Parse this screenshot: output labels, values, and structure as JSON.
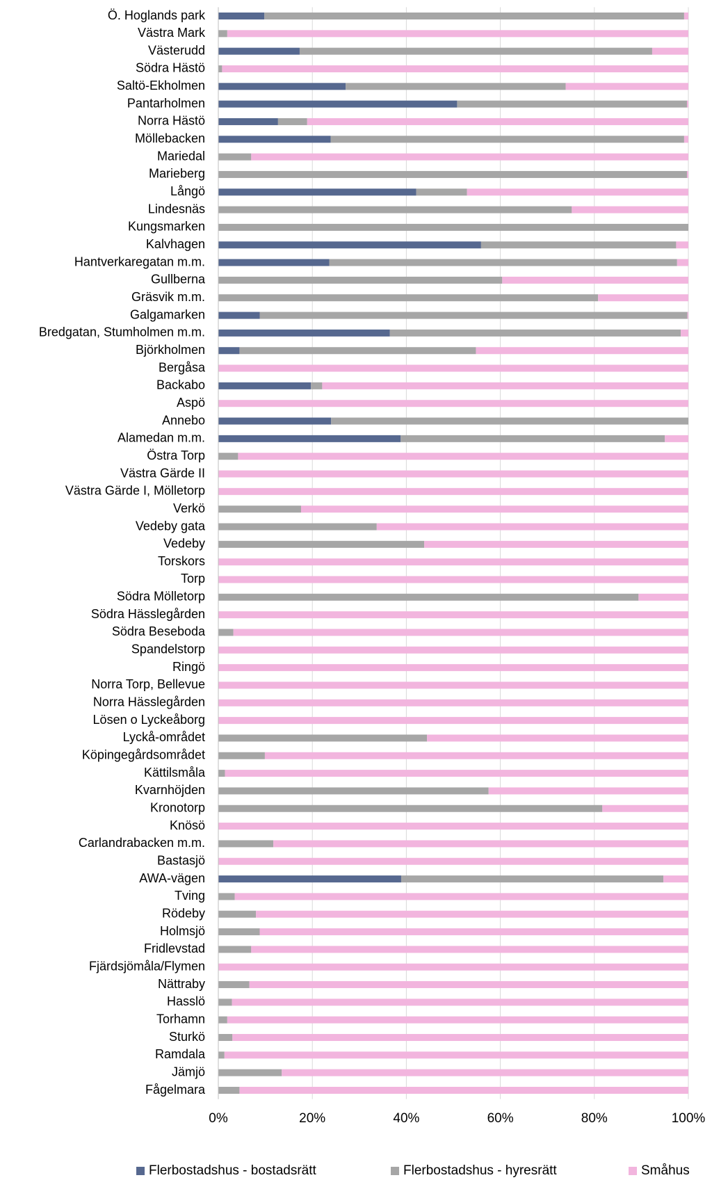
{
  "chart_data": {
    "type": "stacked_barh",
    "categories": [
      "Ö. Hoglands park",
      "Västra Mark",
      "Västerudd",
      "Södra Hästö",
      "Saltö-Ekholmen",
      "Pantarholmen",
      "Norra Hästö",
      "Möllebacken",
      "Mariedal",
      "Marieberg",
      "Långö",
      "Lindesnäs",
      "Kungsmarken",
      "Kalvhagen",
      "Hantverkaregatan m.m.",
      "Gullberna",
      "Gräsvik m.m.",
      "Galgamarken",
      "Bredgatan, Stumholmen m.m.",
      "Björkholmen",
      "Bergåsa",
      "Backabo",
      "Aspö",
      "Annebo",
      "Alamedan m.m.",
      "Östra Torp",
      "Västra Gärde II",
      "Västra Gärde I, Mölletorp",
      "Verkö",
      "Vedeby gata",
      "Vedeby",
      "Torskors",
      "Torp",
      "Södra Mölletorp",
      "Södra Hässlegården",
      "Södra Beseboda",
      "Spandelstorp",
      "Ringö",
      "Norra Torp, Bellevue",
      "Norra Hässlegården",
      "Lösen o Lyckeåborg",
      "Lyckå-området",
      "Köpingegårdsområdet",
      "Kättilsmåla",
      "Kvarnhöjden",
      "Kronotorp",
      "Knösö",
      "Carlandrabacken m.m.",
      "Bastasjö",
      "AWA-vägen",
      "Tving",
      "Rödeby",
      "Holmsjö",
      "Fridlevstad",
      "Fjärdsjömåla/Flymen",
      "Nättraby",
      "Hasslö",
      "Torhamn",
      "Sturkö",
      "Ramdala",
      "Jämjö",
      "Fågelmara"
    ],
    "series": [
      {
        "name": "Flerbostadshus - bostadsrätt",
        "color": "#56688f",
        "values": [
          9.8,
          0,
          17.3,
          0,
          27.1,
          50.8,
          12.7,
          23.9,
          0,
          0,
          42.1,
          0,
          0,
          55.9,
          23.6,
          0,
          0,
          8.8,
          36.5,
          4.5,
          0,
          19.7,
          0,
          24.0,
          38.8,
          0,
          0,
          0,
          0,
          0,
          0,
          0,
          0,
          0,
          0,
          0,
          0,
          0,
          0,
          0,
          0,
          0,
          0,
          0,
          0,
          0,
          0,
          0,
          0,
          38.9,
          0,
          0,
          0,
          0,
          0,
          0,
          0,
          0,
          0,
          0,
          0,
          0
        ]
      },
      {
        "name": "Flerbostadshus - hyresrätt",
        "color": "#a6a6a6",
        "values": [
          89.3,
          1.9,
          75.0,
          0.8,
          46.8,
          48.9,
          6.2,
          75.2,
          7.0,
          99.7,
          10.8,
          75.2,
          100,
          41.5,
          74.0,
          60.4,
          80.8,
          91.0,
          61.9,
          50.3,
          0,
          2.4,
          0,
          76.0,
          56.2,
          4.2,
          0,
          0,
          17.6,
          33.7,
          43.8,
          0,
          0,
          89.4,
          0,
          3.2,
          0,
          0,
          0,
          0,
          0,
          44.4,
          9.9,
          1.4,
          57.5,
          81.7,
          0,
          11.7,
          0,
          55.8,
          3.5,
          8.0,
          8.8,
          7.0,
          0,
          6.6,
          2.9,
          1.9,
          3.0,
          1.3,
          13.5,
          4.5
        ]
      },
      {
        "name": "Småhus",
        "color": "#f2b5de",
        "values": [
          0.9,
          98.1,
          7.7,
          99.2,
          26.1,
          0.3,
          81.1,
          0.9,
          93.0,
          0.3,
          47.1,
          24.8,
          0,
          2.6,
          2.4,
          39.6,
          19.2,
          0.2,
          1.6,
          45.2,
          100,
          77.9,
          100,
          0,
          5.0,
          95.8,
          100,
          100,
          82.4,
          66.3,
          56.2,
          100,
          100,
          10.6,
          100,
          96.8,
          100,
          100,
          100,
          100,
          100,
          55.6,
          90.1,
          98.6,
          42.5,
          18.3,
          100,
          88.3,
          100,
          5.3,
          96.5,
          92.0,
          91.2,
          93.0,
          100,
          93.4,
          97.1,
          98.1,
          97.0,
          98.7,
          86.5,
          95.5
        ]
      }
    ],
    "xlim": [
      0,
      100
    ],
    "xticks": [
      {
        "value": 0,
        "label": "0%"
      },
      {
        "value": 20,
        "label": "20%"
      },
      {
        "value": 40,
        "label": "40%"
      },
      {
        "value": 60,
        "label": "60%"
      },
      {
        "value": 80,
        "label": "80%"
      },
      {
        "value": 100,
        "label": "100%"
      }
    ],
    "grid": true,
    "legend": "bottom"
  }
}
